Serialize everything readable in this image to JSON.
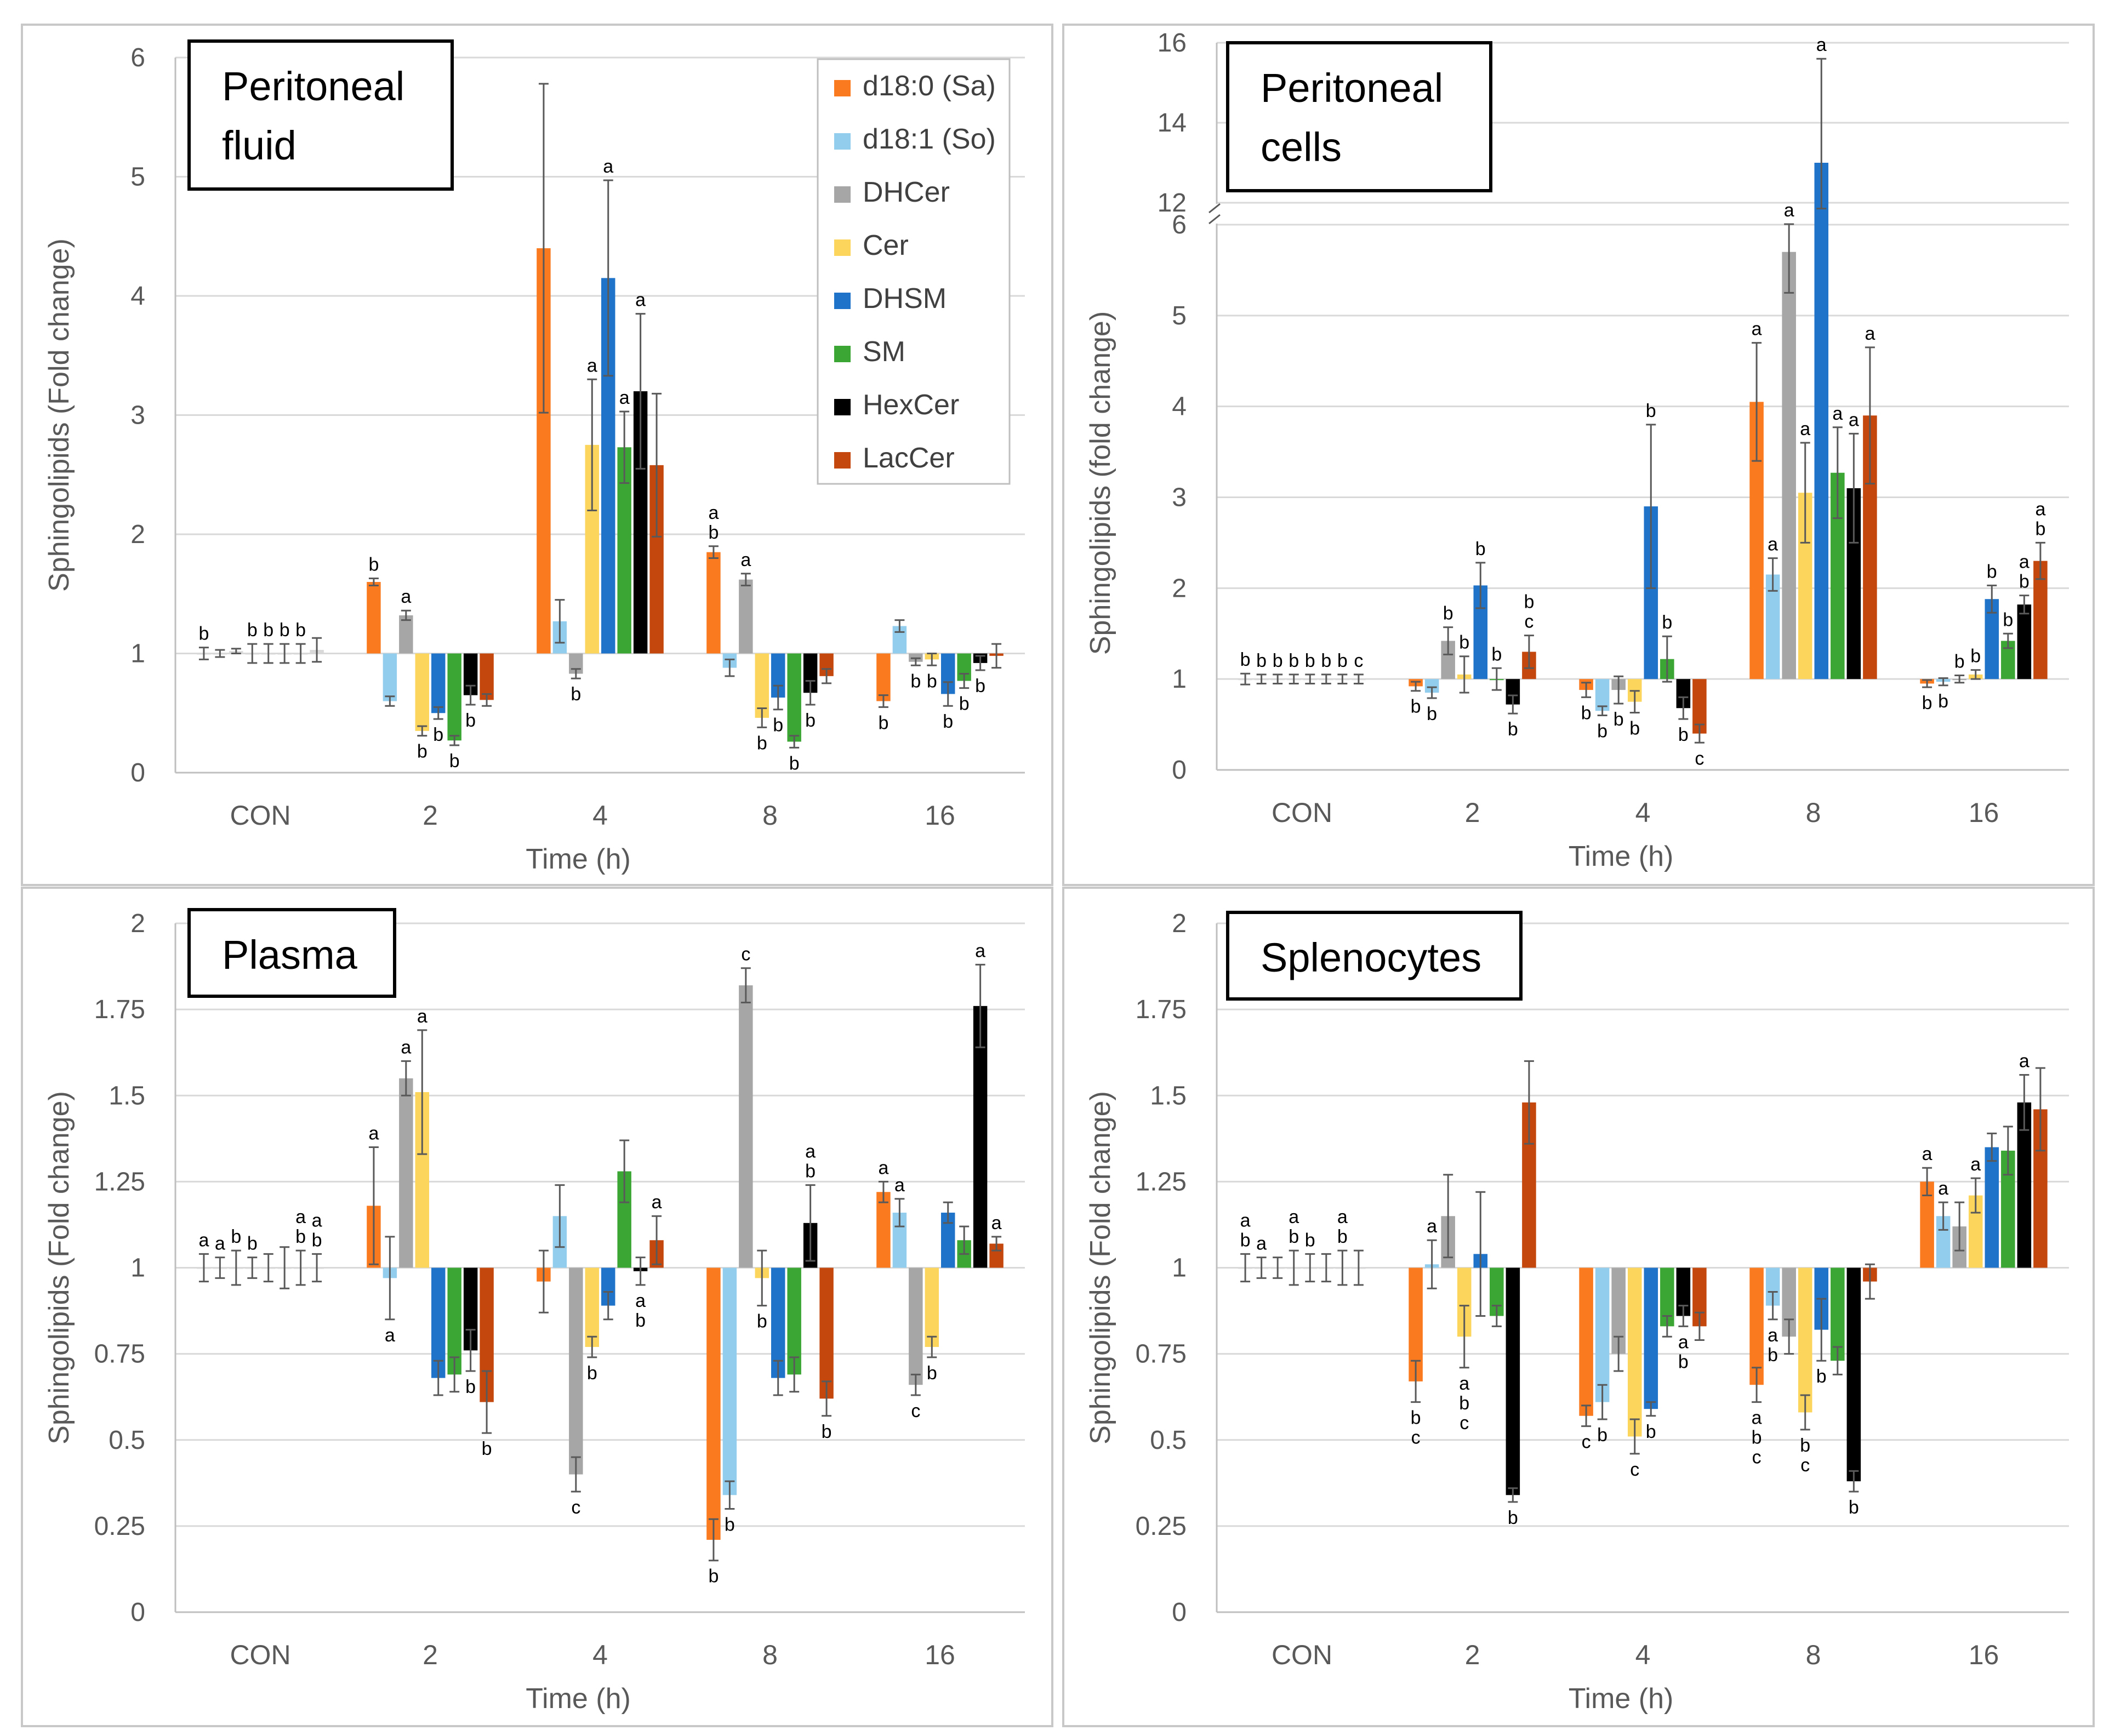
{
  "colors": {
    "d18:0 (Sa)": "#f97a1f",
    "d18:1 (So)": "#93cdee",
    "DHCer": "#a6a6a6",
    "Cer": "#fcd65c",
    "DHSM": "#1f73c9",
    "SM": "#3ca635",
    "HexCer": "#000000",
    "LacCer": "#c4480d",
    "control": "#d9d9d9"
  },
  "legend": [
    "d18:0 (Sa)",
    "d18:1 (So)",
    "DHCer",
    "Cer",
    "DHSM",
    "SM",
    "HexCer",
    "LacCer"
  ],
  "chart_data": [
    {
      "type": "bar",
      "title": [
        "Peritoneal",
        "fluid"
      ],
      "xlabel": "Time (h)",
      "ylabel": "Sphingolipids (Fold change)",
      "ylim": [
        0,
        6
      ],
      "yticks": [
        "0",
        "1",
        "2",
        "3",
        "4",
        "5",
        "6"
      ],
      "baseline": 1,
      "categories": [
        "CON",
        "2",
        "4",
        "8",
        "16"
      ],
      "series": [
        {
          "name": "d18:0 (Sa)",
          "values": [
            1.0,
            1.6,
            4.4,
            1.85,
            0.6
          ],
          "errors": [
            0.05,
            0.03,
            1.38,
            0.05,
            0.05
          ],
          "letters": [
            "b",
            "b",
            "",
            "a\nb",
            "b"
          ]
        },
        {
          "name": "d18:1 (So)",
          "values": [
            1.0,
            0.6,
            1.27,
            0.88,
            1.23
          ],
          "errors": [
            0.03,
            0.04,
            0.18,
            0.07,
            0.05
          ],
          "letters": [
            "",
            "",
            "",
            "",
            ""
          ]
        },
        {
          "name": "DHCer",
          "values": [
            1.02,
            1.32,
            0.83,
            1.62,
            0.93
          ],
          "errors": [
            0.02,
            0.04,
            0.04,
            0.05,
            0.03
          ],
          "letters": [
            "",
            "a",
            "b",
            "a",
            "b"
          ]
        },
        {
          "name": "Cer",
          "values": [
            1.0,
            0.35,
            2.75,
            0.46,
            0.95
          ],
          "errors": [
            0.08,
            0.04,
            0.55,
            0.08,
            0.05
          ],
          "letters": [
            "b",
            "b",
            "a",
            "b",
            "b"
          ]
        },
        {
          "name": "DHSM",
          "values": [
            1.0,
            0.5,
            4.15,
            0.63,
            0.66
          ],
          "errors": [
            0.08,
            0.05,
            0.82,
            0.1,
            0.1
          ],
          "letters": [
            "b",
            "b",
            "a",
            "b",
            "b"
          ]
        },
        {
          "name": "SM",
          "values": [
            1.0,
            0.27,
            2.73,
            0.26,
            0.77
          ],
          "errors": [
            0.08,
            0.04,
            0.3,
            0.05,
            0.06
          ],
          "letters": [
            "b",
            "b",
            "a",
            "b",
            "b"
          ]
        },
        {
          "name": "HexCer",
          "values": [
            1.0,
            0.65,
            3.2,
            0.67,
            0.92
          ],
          "errors": [
            0.08,
            0.08,
            0.65,
            0.1,
            0.06
          ],
          "letters": [
            "b",
            "b",
            "a",
            "b",
            "b"
          ]
        },
        {
          "name": "LacCer",
          "values": [
            1.03,
            0.61,
            2.58,
            0.81,
            0.98
          ],
          "errors": [
            0.1,
            0.05,
            0.6,
            0.06,
            0.1
          ],
          "letters": [
            "",
            "",
            "",
            "",
            ""
          ]
        }
      ]
    },
    {
      "type": "bar",
      "title": [
        "Peritoneal",
        "cells"
      ],
      "xlabel": "Time (h)",
      "ylabel": "Sphingolipids (fold change)",
      "ylim": [
        0,
        16
      ],
      "yticks": [
        "0",
        "1",
        "2",
        "3",
        "4",
        "5",
        "6",
        "12",
        "14",
        "16"
      ],
      "axis_break": [
        6,
        12
      ],
      "baseline": 1,
      "categories": [
        "CON",
        "2",
        "4",
        "8",
        "16"
      ],
      "series": [
        {
          "name": "d18:0 (Sa)",
          "values": [
            1.0,
            0.92,
            0.88,
            4.05,
            0.95
          ],
          "errors": [
            0.06,
            0.05,
            0.08,
            0.65,
            0.04
          ],
          "letters": [
            "b",
            "b",
            "b",
            "a",
            "b"
          ]
        },
        {
          "name": "d18:1 (So)",
          "values": [
            1.0,
            0.85,
            0.65,
            2.15,
            0.97
          ],
          "errors": [
            0.05,
            0.06,
            0.05,
            0.18,
            0.04
          ],
          "letters": [
            "b",
            "b",
            "b",
            "a",
            "b"
          ]
        },
        {
          "name": "DHCer",
          "values": [
            1.0,
            1.42,
            0.88,
            5.7,
            1.0
          ],
          "errors": [
            0.05,
            0.15,
            0.15,
            0.45,
            0.04
          ],
          "letters": [
            "b",
            "b",
            "b",
            "a",
            "b"
          ]
        },
        {
          "name": "Cer",
          "values": [
            1.0,
            1.05,
            0.75,
            3.05,
            1.05
          ],
          "errors": [
            0.05,
            0.2,
            0.12,
            0.55,
            0.05
          ],
          "letters": [
            "b",
            "b",
            "b",
            "a",
            "b"
          ]
        },
        {
          "name": "DHSM",
          "values": [
            1.0,
            2.03,
            2.9,
            13.0,
            1.88
          ],
          "errors": [
            0.05,
            0.25,
            0.9,
            2.6,
            0.15
          ],
          "letters": [
            "b",
            "b",
            "b",
            "a",
            "b"
          ]
        },
        {
          "name": "SM",
          "values": [
            1.0,
            1.0,
            1.22,
            3.27,
            1.42
          ],
          "errors": [
            0.05,
            0.12,
            0.25,
            0.5,
            0.08
          ],
          "letters": [
            "b",
            "b",
            "b",
            "a",
            "b"
          ]
        },
        {
          "name": "HexCer",
          "values": [
            1.0,
            0.72,
            0.68,
            3.1,
            1.82
          ],
          "errors": [
            0.05,
            0.1,
            0.12,
            0.6,
            0.1
          ],
          "letters": [
            "b",
            "b",
            "b",
            "a",
            "a\nb"
          ]
        },
        {
          "name": "LacCer",
          "values": [
            1.0,
            1.3,
            0.4,
            3.9,
            2.3
          ],
          "errors": [
            0.05,
            0.18,
            0.1,
            0.75,
            0.2
          ],
          "letters": [
            "c",
            "b\nc",
            "c",
            "a",
            "a\nb"
          ]
        }
      ]
    },
    {
      "type": "bar",
      "title": [
        "Plasma"
      ],
      "xlabel": "Time (h)",
      "ylabel": "Sphingolipids (Fold change)",
      "ylim": [
        0,
        2
      ],
      "yticks": [
        "0",
        "0.25",
        "0.5",
        "0.75",
        "1",
        "1.25",
        "1.5",
        "1.75",
        "2"
      ],
      "baseline": 1,
      "categories": [
        "CON",
        "2",
        "4",
        "8",
        "16"
      ],
      "series": [
        {
          "name": "d18:0 (Sa)",
          "values": [
            1.0,
            1.18,
            0.96,
            0.21,
            1.22
          ],
          "errors": [
            0.04,
            0.17,
            0.09,
            0.06,
            0.03
          ],
          "letters": [
            "a",
            "a",
            "",
            "b",
            "a"
          ]
        },
        {
          "name": "d18:1 (So)",
          "values": [
            1.0,
            0.97,
            1.15,
            0.34,
            1.16
          ],
          "errors": [
            0.03,
            0.12,
            0.09,
            0.04,
            0.04
          ],
          "letters": [
            "a",
            "a",
            "",
            "b",
            "a"
          ]
        },
        {
          "name": "DHCer",
          "values": [
            1.0,
            1.55,
            0.4,
            1.82,
            0.66
          ],
          "errors": [
            0.05,
            0.05,
            0.05,
            0.05,
            0.03
          ],
          "letters": [
            "b",
            "a",
            "c",
            "c",
            "c"
          ]
        },
        {
          "name": "Cer",
          "values": [
            1.0,
            1.51,
            0.77,
            0.97,
            0.77
          ],
          "errors": [
            0.03,
            0.18,
            0.03,
            0.08,
            0.03
          ],
          "letters": [
            "b",
            "a",
            "b",
            "b",
            "b"
          ]
        },
        {
          "name": "DHSM",
          "values": [
            1.0,
            0.68,
            0.89,
            0.68,
            1.16
          ],
          "errors": [
            0.04,
            0.05,
            0.04,
            0.05,
            0.03
          ],
          "letters": [
            "",
            "",
            "",
            "",
            ""
          ]
        },
        {
          "name": "SM",
          "values": [
            1.0,
            0.69,
            1.28,
            0.69,
            1.08
          ],
          "errors": [
            0.06,
            0.05,
            0.09,
            0.05,
            0.04
          ],
          "letters": [
            "",
            "",
            "",
            "",
            ""
          ]
        },
        {
          "name": "HexCer",
          "values": [
            1.0,
            0.76,
            0.99,
            1.13,
            1.76
          ],
          "errors": [
            0.05,
            0.06,
            0.04,
            0.11,
            0.12
          ],
          "letters": [
            "a\nb",
            "b",
            "a\nb",
            "a\nb",
            "a"
          ]
        },
        {
          "name": "LacCer",
          "values": [
            1.0,
            0.61,
            1.08,
            0.62,
            1.07
          ],
          "errors": [
            0.04,
            0.09,
            0.07,
            0.05,
            0.02
          ],
          "letters": [
            "a\nb",
            "b",
            "a",
            "b",
            "a"
          ]
        }
      ]
    },
    {
      "type": "bar",
      "title": [
        "Splenocytes"
      ],
      "xlabel": "Time (h)",
      "ylabel": "Sphingolipids (Fold change)",
      "ylim": [
        0,
        2
      ],
      "yticks": [
        "0",
        "0.25",
        "0.5",
        "0.75",
        "1",
        "1.25",
        "1.5",
        "1.75",
        "2"
      ],
      "baseline": 1,
      "categories": [
        "CON",
        "2",
        "4",
        "8",
        "16"
      ],
      "series": [
        {
          "name": "d18:0 (Sa)",
          "values": [
            1.0,
            0.67,
            0.57,
            0.66,
            1.25
          ],
          "errors": [
            0.04,
            0.06,
            0.03,
            0.05,
            0.04
          ],
          "letters": [
            "a\nb",
            "b\nc",
            "c",
            "a\nb\nc",
            "a"
          ]
        },
        {
          "name": "d18:1 (So)",
          "values": [
            1.0,
            1.01,
            0.61,
            0.89,
            1.15
          ],
          "errors": [
            0.03,
            0.07,
            0.05,
            0.04,
            0.04
          ],
          "letters": [
            "a",
            "a",
            "b",
            "a\nb",
            "a"
          ]
        },
        {
          "name": "DHCer",
          "values": [
            1.0,
            1.15,
            0.75,
            0.8,
            1.12
          ],
          "errors": [
            0.03,
            0.12,
            0.05,
            0.05,
            0.07
          ],
          "letters": [
            "",
            "",
            "",
            "",
            ""
          ]
        },
        {
          "name": "Cer",
          "values": [
            1.0,
            0.8,
            0.51,
            0.58,
            1.21
          ],
          "errors": [
            0.05,
            0.09,
            0.05,
            0.05,
            0.05
          ],
          "letters": [
            "a\nb",
            "a\nb\nc",
            "c",
            "b\nc",
            "a"
          ]
        },
        {
          "name": "DHSM",
          "values": [
            1.0,
            1.04,
            0.59,
            0.82,
            1.35
          ],
          "errors": [
            0.04,
            0.18,
            0.02,
            0.09,
            0.04
          ],
          "letters": [
            "b",
            "",
            "b",
            "b",
            ""
          ]
        },
        {
          "name": "SM",
          "values": [
            1.0,
            0.86,
            0.83,
            0.73,
            1.34
          ],
          "errors": [
            0.04,
            0.03,
            0.03,
            0.04,
            0.07
          ],
          "letters": [
            "",
            "",
            "",
            "",
            ""
          ]
        },
        {
          "name": "HexCer",
          "values": [
            1.0,
            0.34,
            0.86,
            0.38,
            1.48
          ],
          "errors": [
            0.05,
            0.02,
            0.03,
            0.03,
            0.08
          ],
          "letters": [
            "a\nb",
            "b",
            "a\nb",
            "b",
            "a"
          ]
        },
        {
          "name": "LacCer",
          "values": [
            1.0,
            1.48,
            0.83,
            0.96,
            1.46
          ],
          "errors": [
            0.05,
            0.12,
            0.04,
            0.05,
            0.12
          ],
          "letters": [
            "",
            "",
            "",
            "",
            ""
          ]
        }
      ]
    }
  ]
}
